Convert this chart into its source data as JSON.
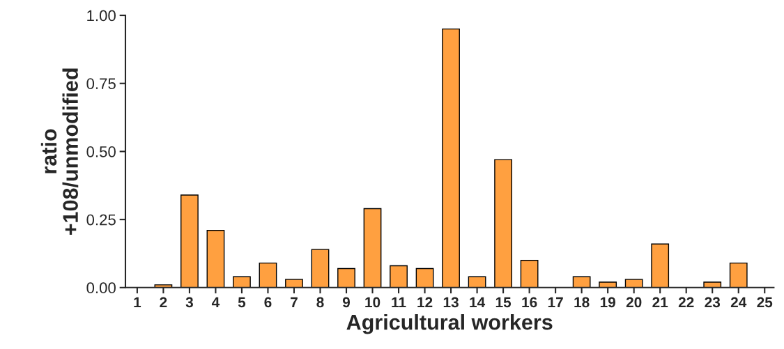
{
  "chart_data": {
    "type": "bar",
    "xlabel": "Agricultural workers",
    "ylabel": "ratio\n+108/unmodified",
    "categories": [
      "1",
      "2",
      "3",
      "4",
      "5",
      "6",
      "7",
      "8",
      "9",
      "10",
      "11",
      "12",
      "13",
      "14",
      "15",
      "16",
      "17",
      "18",
      "19",
      "20",
      "21",
      "22",
      "23",
      "24",
      "25"
    ],
    "values": [
      0,
      0.01,
      0.34,
      0.21,
      0.04,
      0.09,
      0.03,
      0.14,
      0.07,
      0.29,
      0.08,
      0.07,
      0.95,
      0.04,
      0.47,
      0.1,
      0,
      0.04,
      0.02,
      0.03,
      0.16,
      0,
      0.02,
      0.09,
      0
    ],
    "color": "#ffa040",
    "ylim": [
      0,
      1.0
    ],
    "yticks": [
      {
        "value": 0,
        "label": "0.00"
      },
      {
        "value": 0.25,
        "label": "0.25"
      },
      {
        "value": 0.5,
        "label": "0.50"
      },
      {
        "value": 0.75,
        "label": "0.75"
      },
      {
        "value": 1.0,
        "label": "1.00"
      }
    ],
    "grid": false,
    "legend": false
  }
}
